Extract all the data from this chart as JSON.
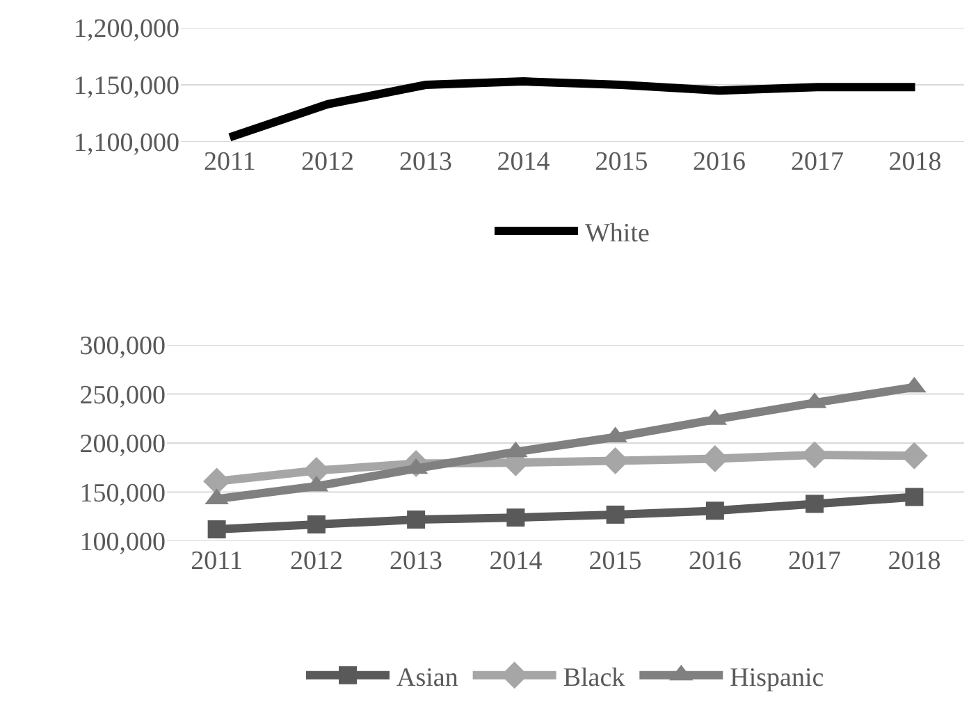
{
  "chart_data": [
    {
      "type": "line",
      "x": [
        2011,
        2012,
        2013,
        2014,
        2015,
        2016,
        2017,
        2018
      ],
      "xlim": [
        2010.5,
        2018.5
      ],
      "xticks": [
        2011,
        2012,
        2013,
        2014,
        2015,
        2016,
        2017,
        2018
      ],
      "ylim": [
        1100000,
        1200000
      ],
      "yticks": [
        {
          "value": 1100000,
          "label": "1,100,000"
        },
        {
          "value": 1150000,
          "label": "1,150,000"
        },
        {
          "value": 1200000,
          "label": "1,200,000"
        }
      ],
      "grid": "y",
      "legend": "bottom",
      "marker": "none",
      "line_style": "solid",
      "series": [
        {
          "name": "White",
          "color": "#000000",
          "values": [
            1104000,
            1133000,
            1150000,
            1153000,
            1150000,
            1145000,
            1148000,
            1148000
          ]
        }
      ]
    },
    {
      "type": "line",
      "x": [
        2011,
        2012,
        2013,
        2014,
        2015,
        2016,
        2017,
        2018
      ],
      "xlim": [
        2010.5,
        2018.5
      ],
      "xticks": [
        2011,
        2012,
        2013,
        2014,
        2015,
        2016,
        2017,
        2018
      ],
      "ylim": [
        100000,
        300000
      ],
      "yticks": [
        {
          "value": 100000,
          "label": "100,000"
        },
        {
          "value": 150000,
          "label": "150,000"
        },
        {
          "value": 200000,
          "label": "200,000"
        },
        {
          "value": 250000,
          "label": "250,000"
        },
        {
          "value": 300000,
          "label": "300,000"
        }
      ],
      "grid": "y",
      "legend": "bottom",
      "line_style": "solid",
      "series": [
        {
          "name": "Asian",
          "color": "#595959",
          "marker": "square",
          "values": [
            112000,
            117000,
            122000,
            124000,
            127000,
            131000,
            138000,
            145000
          ]
        },
        {
          "name": "Black",
          "color": "#a6a6a6",
          "marker": "diamond",
          "values": [
            161000,
            172000,
            179000,
            180000,
            182000,
            184000,
            188000,
            187000
          ]
        },
        {
          "name": "Hispanic",
          "color": "#808080",
          "marker": "triangle",
          "values": [
            143000,
            156000,
            174000,
            191000,
            206000,
            224000,
            241000,
            257000
          ]
        }
      ]
    }
  ]
}
